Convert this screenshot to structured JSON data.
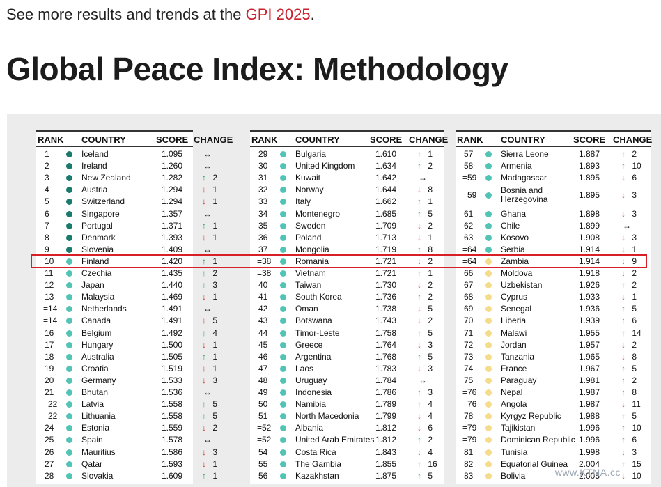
{
  "intro": {
    "text": "See more results and trends at the ",
    "link": "GPI 2025",
    "end": "."
  },
  "heading": "Global Peace Index: Methodology",
  "headers": {
    "rank": "RANK",
    "country": "COUNTRY",
    "score": "SCORE",
    "change": "CHANGE"
  },
  "colors": {
    "very_high": "#1a7a6e",
    "high": "#52c4b5",
    "medium": "#f5dc8a",
    "up": "#2e9e5b",
    "down": "#d4342e",
    "highlight": "#d81e26"
  },
  "columns": [
    [
      {
        "rank": "1",
        "country": "Iceland",
        "score": "1.095",
        "dir": "same",
        "n": ""
      },
      {
        "rank": "2",
        "country": "Ireland",
        "score": "1.260",
        "dir": "same",
        "n": ""
      },
      {
        "rank": "3",
        "country": "New Zealand",
        "score": "1.282",
        "dir": "up",
        "n": "2"
      },
      {
        "rank": "4",
        "country": "Austria",
        "score": "1.294",
        "dir": "down",
        "n": "1"
      },
      {
        "rank": "5",
        "country": "Switzerland",
        "score": "1.294",
        "dir": "down",
        "n": "1"
      },
      {
        "rank": "6",
        "country": "Singapore",
        "score": "1.357",
        "dir": "same",
        "n": ""
      },
      {
        "rank": "7",
        "country": "Portugal",
        "score": "1.371",
        "dir": "up",
        "n": "1"
      },
      {
        "rank": "8",
        "country": "Denmark",
        "score": "1.393",
        "dir": "down",
        "n": "1"
      },
      {
        "rank": "9",
        "country": "Slovenia",
        "score": "1.409",
        "dir": "same",
        "n": ""
      },
      {
        "rank": "10",
        "country": "Finland",
        "score": "1.420",
        "dir": "up",
        "n": "1"
      },
      {
        "rank": "11",
        "country": "Czechia",
        "score": "1.435",
        "dir": "up",
        "n": "2"
      },
      {
        "rank": "12",
        "country": "Japan",
        "score": "1.440",
        "dir": "up",
        "n": "3"
      },
      {
        "rank": "13",
        "country": "Malaysia",
        "score": "1.469",
        "dir": "down",
        "n": "1"
      },
      {
        "rank": "=14",
        "country": "Netherlands",
        "score": "1.491",
        "dir": "same",
        "n": ""
      },
      {
        "rank": "=14",
        "country": "Canada",
        "score": "1.491",
        "dir": "down",
        "n": "5"
      },
      {
        "rank": "16",
        "country": "Belgium",
        "score": "1.492",
        "dir": "up",
        "n": "4"
      },
      {
        "rank": "17",
        "country": "Hungary",
        "score": "1.500",
        "dir": "down",
        "n": "1"
      },
      {
        "rank": "18",
        "country": "Australia",
        "score": "1.505",
        "dir": "up",
        "n": "1"
      },
      {
        "rank": "19",
        "country": "Croatia",
        "score": "1.519",
        "dir": "down",
        "n": "1"
      },
      {
        "rank": "20",
        "country": "Germany",
        "score": "1.533",
        "dir": "down",
        "n": "3"
      },
      {
        "rank": "21",
        "country": "Bhutan",
        "score": "1.536",
        "dir": "same",
        "n": ""
      },
      {
        "rank": "=22",
        "country": "Latvia",
        "score": "1.558",
        "dir": "up",
        "n": "5"
      },
      {
        "rank": "=22",
        "country": "Lithuania",
        "score": "1.558",
        "dir": "up",
        "n": "5"
      },
      {
        "rank": "24",
        "country": "Estonia",
        "score": "1.559",
        "dir": "down",
        "n": "2"
      },
      {
        "rank": "25",
        "country": "Spain",
        "score": "1.578",
        "dir": "same",
        "n": ""
      },
      {
        "rank": "26",
        "country": "Mauritius",
        "score": "1.586",
        "dir": "down",
        "n": "3"
      },
      {
        "rank": "27",
        "country": "Qatar",
        "score": "1.593",
        "dir": "down",
        "n": "1"
      },
      {
        "rank": "28",
        "country": "Slovakia",
        "score": "1.609",
        "dir": "up",
        "n": "1"
      }
    ],
    [
      {
        "rank": "29",
        "country": "Bulgaria",
        "score": "1.610",
        "dir": "up",
        "n": "1"
      },
      {
        "rank": "30",
        "country": "United Kingdom",
        "score": "1.634",
        "dir": "up",
        "n": "2"
      },
      {
        "rank": "31",
        "country": "Kuwait",
        "score": "1.642",
        "dir": "same",
        "n": ""
      },
      {
        "rank": "32",
        "country": "Norway",
        "score": "1.644",
        "dir": "down",
        "n": "8"
      },
      {
        "rank": "33",
        "country": "Italy",
        "score": "1.662",
        "dir": "up",
        "n": "1"
      },
      {
        "rank": "34",
        "country": "Montenegro",
        "score": "1.685",
        "dir": "up",
        "n": "5"
      },
      {
        "rank": "35",
        "country": "Sweden",
        "score": "1.709",
        "dir": "down",
        "n": "2"
      },
      {
        "rank": "36",
        "country": "Poland",
        "score": "1.713",
        "dir": "down",
        "n": "1"
      },
      {
        "rank": "37",
        "country": "Mongolia",
        "score": "1.719",
        "dir": "up",
        "n": "8"
      },
      {
        "rank": "=38",
        "country": "Romania",
        "score": "1.721",
        "dir": "down",
        "n": "2"
      },
      {
        "rank": "=38",
        "country": "Vietnam",
        "score": "1.721",
        "dir": "up",
        "n": "1"
      },
      {
        "rank": "40",
        "country": "Taiwan",
        "score": "1.730",
        "dir": "down",
        "n": "2"
      },
      {
        "rank": "41",
        "country": "South Korea",
        "score": "1.736",
        "dir": "up",
        "n": "2"
      },
      {
        "rank": "42",
        "country": "Oman",
        "score": "1.738",
        "dir": "down",
        "n": "5"
      },
      {
        "rank": "43",
        "country": "Botswana",
        "score": "1.743",
        "dir": "down",
        "n": "2"
      },
      {
        "rank": "44",
        "country": "Timor-Leste",
        "score": "1.758",
        "dir": "up",
        "n": "5"
      },
      {
        "rank": "45",
        "country": "Greece",
        "score": "1.764",
        "dir": "down",
        "n": "3"
      },
      {
        "rank": "46",
        "country": "Argentina",
        "score": "1.768",
        "dir": "up",
        "n": "5"
      },
      {
        "rank": "47",
        "country": "Laos",
        "score": "1.783",
        "dir": "down",
        "n": "3"
      },
      {
        "rank": "48",
        "country": "Uruguay",
        "score": "1.784",
        "dir": "same",
        "n": ""
      },
      {
        "rank": "49",
        "country": "Indonesia",
        "score": "1.786",
        "dir": "up",
        "n": "3"
      },
      {
        "rank": "50",
        "country": "Namibia",
        "score": "1.789",
        "dir": "up",
        "n": "4"
      },
      {
        "rank": "51",
        "country": "North Macedonia",
        "score": "1.799",
        "dir": "down",
        "n": "4"
      },
      {
        "rank": "=52",
        "country": "Albania",
        "score": "1.812",
        "dir": "down",
        "n": "6"
      },
      {
        "rank": "=52",
        "country": "United Arab Emirates",
        "score": "1.812",
        "dir": "up",
        "n": "2"
      },
      {
        "rank": "54",
        "country": "Costa Rica",
        "score": "1.843",
        "dir": "down",
        "n": "4"
      },
      {
        "rank": "55",
        "country": "The Gambia",
        "score": "1.855",
        "dir": "up",
        "n": "16"
      },
      {
        "rank": "56",
        "country": "Kazakhstan",
        "score": "1.875",
        "dir": "up",
        "n": "5"
      }
    ],
    [
      {
        "rank": "57",
        "country": "Sierra Leone",
        "score": "1.887",
        "dir": "up",
        "n": "2"
      },
      {
        "rank": "58",
        "country": "Armenia",
        "score": "1.893",
        "dir": "up",
        "n": "10"
      },
      {
        "rank": "=59",
        "country": "Madagascar",
        "score": "1.895",
        "dir": "down",
        "n": "6"
      },
      {
        "rank": "=59",
        "country": "Bosnia and Herzegovina",
        "score": "1.895",
        "dir": "down",
        "n": "3"
      },
      {
        "rank": "61",
        "country": "Ghana",
        "score": "1.898",
        "dir": "down",
        "n": "3"
      },
      {
        "rank": "62",
        "country": "Chile",
        "score": "1.899",
        "dir": "same",
        "n": ""
      },
      {
        "rank": "63",
        "country": "Kosovo",
        "score": "1.908",
        "dir": "down",
        "n": "3"
      },
      {
        "rank": "=64",
        "country": "Serbia",
        "score": "1.914",
        "dir": "down",
        "n": "1"
      },
      {
        "rank": "=64",
        "country": "Zambia",
        "score": "1.914",
        "dir": "down",
        "n": "9"
      },
      {
        "rank": "66",
        "country": "Moldova",
        "score": "1.918",
        "dir": "down",
        "n": "2"
      },
      {
        "rank": "67",
        "country": "Uzbekistan",
        "score": "1.926",
        "dir": "up",
        "n": "2"
      },
      {
        "rank": "68",
        "country": "Cyprus",
        "score": "1.933",
        "dir": "down",
        "n": "1"
      },
      {
        "rank": "69",
        "country": "Senegal",
        "score": "1.936",
        "dir": "up",
        "n": "5"
      },
      {
        "rank": "70",
        "country": "Liberia",
        "score": "1.939",
        "dir": "up",
        "n": "6"
      },
      {
        "rank": "71",
        "country": "Malawi",
        "score": "1.955",
        "dir": "up",
        "n": "14"
      },
      {
        "rank": "72",
        "country": "Jordan",
        "score": "1.957",
        "dir": "down",
        "n": "2"
      },
      {
        "rank": "73",
        "country": "Tanzania",
        "score": "1.965",
        "dir": "down",
        "n": "8"
      },
      {
        "rank": "74",
        "country": "France",
        "score": "1.967",
        "dir": "up",
        "n": "5"
      },
      {
        "rank": "75",
        "country": "Paraguay",
        "score": "1.981",
        "dir": "up",
        "n": "2"
      },
      {
        "rank": "=76",
        "country": "Nepal",
        "score": "1.987",
        "dir": "up",
        "n": "8"
      },
      {
        "rank": "=76",
        "country": "Angola",
        "score": "1.987",
        "dir": "down",
        "n": "11"
      },
      {
        "rank": "78",
        "country": "Kyrgyz Republic",
        "score": "1.988",
        "dir": "up",
        "n": "5"
      },
      {
        "rank": "=79",
        "country": "Tajikistan",
        "score": "1.996",
        "dir": "up",
        "n": "10"
      },
      {
        "rank": "=79",
        "country": "Dominican Republic",
        "score": "1.996",
        "dir": "up",
        "n": "6"
      },
      {
        "rank": "81",
        "country": "Tunisia",
        "score": "1.998",
        "dir": "down",
        "n": "3"
      },
      {
        "rank": "82",
        "country": "Equatorial Guinea",
        "score": "2.004",
        "dir": "up",
        "n": "15"
      },
      {
        "rank": "83",
        "country": "Bolivia",
        "score": "2.005",
        "dir": "down",
        "n": "10"
      }
    ]
  ],
  "watermark": "www.KTNA.cc"
}
